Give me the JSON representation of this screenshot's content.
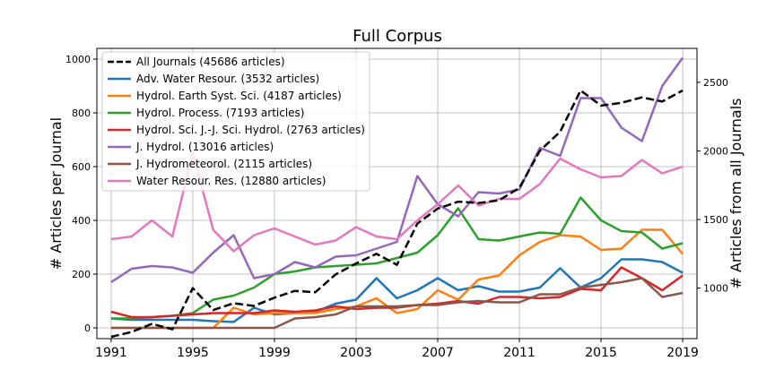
{
  "chart_data": {
    "type": "line",
    "title": "Full Corpus",
    "xlabel": "",
    "ylabel": "# Articles per Journal",
    "y2label": "# Articles from all Journals",
    "x": [
      1991,
      1992,
      1993,
      1994,
      1995,
      1996,
      1997,
      1998,
      1999,
      2000,
      2001,
      2002,
      2003,
      2004,
      2005,
      2006,
      2007,
      2008,
      2009,
      2010,
      2011,
      2012,
      2013,
      2014,
      2015,
      2016,
      2017,
      2018,
      2019
    ],
    "xticks": [
      1991,
      1995,
      1999,
      2003,
      2007,
      2011,
      2015,
      2019
    ],
    "ylim": [
      -40,
      1040
    ],
    "yticks": [
      0,
      200,
      400,
      600,
      800,
      1000
    ],
    "y2lim": [
      632,
      2747
    ],
    "y2ticks": [
      1000,
      1500,
      2000,
      2500
    ],
    "grid": true,
    "legend_position": "upper-left",
    "series": [
      {
        "name": "All Journals (45686 articles)",
        "axis": "right",
        "color": "#000000",
        "dashed": true,
        "values": [
          645,
          680,
          740,
          700,
          1000,
          840,
          890,
          870,
          930,
          980,
          970,
          1100,
          1180,
          1250,
          1170,
          1470,
          1580,
          1630,
          1620,
          1640,
          1730,
          2000,
          2140,
          2440,
          2330,
          2350,
          2390,
          2360,
          2440
        ]
      },
      {
        "name": "Adv. Water Resour. (3532 articles)",
        "axis": "left",
        "color": "#1f77b4",
        "values": [
          35,
          30,
          30,
          30,
          30,
          25,
          22,
          75,
          50,
          55,
          60,
          90,
          105,
          185,
          110,
          140,
          185,
          140,
          155,
          135,
          135,
          150,
          222,
          150,
          185,
          255,
          255,
          245,
          205
        ]
      },
      {
        "name": "Hydrol. Earth Syst. Sci. (4187 articles)",
        "axis": "left",
        "color": "#ff7f0e",
        "values": [
          0,
          0,
          0,
          0,
          0,
          0,
          75,
          50,
          55,
          55,
          55,
          70,
          80,
          110,
          55,
          70,
          140,
          105,
          180,
          195,
          270,
          320,
          345,
          340,
          290,
          295,
          365,
          365,
          275
        ]
      },
      {
        "name": "Hydrol. Process. (7193 articles)",
        "axis": "left",
        "color": "#2ca02c",
        "values": [
          35,
          35,
          40,
          45,
          55,
          105,
          120,
          150,
          200,
          210,
          225,
          230,
          235,
          240,
          260,
          280,
          345,
          445,
          330,
          325,
          340,
          355,
          350,
          485,
          400,
          360,
          355,
          295,
          315
        ]
      },
      {
        "name": "Hydrol. Sci. J.-J. Sci. Hydrol. (2763 articles)",
        "axis": "left",
        "color": "#d62728",
        "values": [
          60,
          40,
          40,
          45,
          50,
          55,
          55,
          55,
          65,
          60,
          65,
          80,
          70,
          75,
          75,
          85,
          90,
          100,
          90,
          115,
          115,
          110,
          115,
          145,
          140,
          225,
          185,
          140,
          195
        ]
      },
      {
        "name": "J. Hydrol. (13016 articles)",
        "axis": "left",
        "color": "#9467bd",
        "values": [
          170,
          220,
          230,
          225,
          205,
          280,
          345,
          185,
          200,
          245,
          225,
          265,
          270,
          295,
          320,
          565,
          460,
          415,
          505,
          500,
          515,
          670,
          640,
          855,
          855,
          745,
          695,
          900,
          1005
        ]
      },
      {
        "name": "J. Hydrometeorol. (2115 articles)",
        "axis": "left",
        "color": "#8c564b",
        "values": [
          0,
          0,
          0,
          0,
          0,
          0,
          0,
          0,
          0,
          35,
          40,
          50,
          80,
          80,
          80,
          85,
          85,
          95,
          100,
          95,
          95,
          125,
          125,
          150,
          160,
          170,
          185,
          115,
          130
        ]
      },
      {
        "name": "Water Resour. Res. (12880 articles)",
        "axis": "left",
        "color": "#e377c2",
        "values": [
          330,
          340,
          400,
          340,
          650,
          365,
          285,
          345,
          370,
          340,
          310,
          325,
          375,
          340,
          330,
          400,
          460,
          530,
          455,
          480,
          480,
          535,
          630,
          590,
          560,
          565,
          625,
          575,
          600
        ]
      }
    ]
  }
}
